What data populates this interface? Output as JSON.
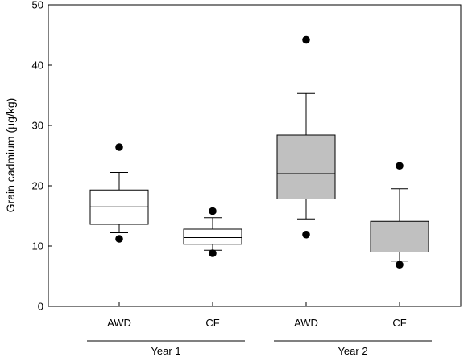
{
  "chart_data": {
    "type": "box",
    "ylabel": "Grain cadmium (µg/kg)",
    "ylim": [
      0,
      50
    ],
    "yticks": [
      0,
      10,
      20,
      30,
      40,
      50
    ],
    "grid": false,
    "categories": [
      "AWD",
      "CF",
      "AWD",
      "CF"
    ],
    "groups": [
      {
        "label": "Year 1",
        "categories": [
          0,
          1
        ]
      },
      {
        "label": "Year 2",
        "categories": [
          2,
          3
        ]
      }
    ],
    "boxes": [
      {
        "category": "AWD",
        "group": "Year 1",
        "whisker_low": 12.2,
        "q1": 13.6,
        "median": 16.5,
        "q3": 19.3,
        "whisker_high": 22.2,
        "outliers": [
          11.2,
          26.4
        ],
        "fill": "#ffffff"
      },
      {
        "category": "CF",
        "group": "Year 1",
        "whisker_low": 9.3,
        "q1": 10.3,
        "median": 11.4,
        "q3": 12.8,
        "whisker_high": 14.7,
        "outliers": [
          8.8,
          15.8
        ],
        "fill": "#ffffff"
      },
      {
        "category": "AWD",
        "group": "Year 2",
        "whisker_low": 14.5,
        "q1": 17.8,
        "median": 22.0,
        "q3": 28.4,
        "whisker_high": 35.3,
        "outliers": [
          11.9,
          44.2
        ],
        "fill": "#c0c0c0"
      },
      {
        "category": "CF",
        "group": "Year 2",
        "whisker_low": 7.5,
        "q1": 9.0,
        "median": 11.0,
        "q3": 14.1,
        "whisker_high": 19.5,
        "outliers": [
          6.9,
          23.3
        ],
        "fill": "#c0c0c0"
      }
    ]
  }
}
